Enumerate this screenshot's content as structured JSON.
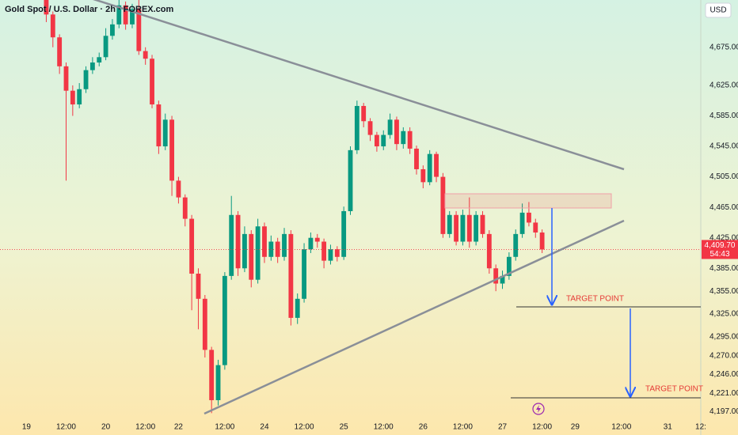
{
  "header": {
    "symbol_title": "Gold Spot / U.S. Dollar · 2h · FOREX.com",
    "currency": "USD"
  },
  "chart_data": {
    "type": "candlestick",
    "up_color": "#089981",
    "down_color": "#f23645",
    "x": [
      3,
      4,
      5,
      6,
      7,
      8,
      9,
      10,
      11,
      12,
      13,
      14,
      15,
      16,
      17,
      18,
      19,
      20,
      21,
      22,
      23,
      24,
      25,
      26,
      27,
      28,
      29,
      30,
      31,
      32,
      33,
      34,
      35,
      36,
      37,
      38,
      39,
      40,
      41,
      42,
      43,
      44,
      45,
      46,
      47,
      48,
      49,
      50,
      51,
      52,
      53,
      54,
      55,
      56,
      57,
      58,
      59,
      60,
      61,
      62,
      63,
      64,
      65,
      66,
      67,
      68,
      69,
      70,
      71,
      72,
      73,
      74,
      75,
      76,
      77,
      78
    ],
    "open": [
      4738,
      4718,
      4688,
      4650,
      4618,
      4600,
      4620,
      4645,
      4655,
      4662,
      4690,
      4705,
      4730,
      4705,
      4725,
      4670,
      4660,
      4600,
      4545,
      4580,
      4500,
      4478,
      4450,
      4378,
      4345,
      4278,
      4212,
      4258,
      4375,
      4455,
      4385,
      4430,
      4370,
      4440,
      4400,
      4420,
      4400,
      4430,
      4320,
      4345,
      4410,
      4425,
      4420,
      4395,
      4410,
      4400,
      4460,
      4540,
      4598,
      4578,
      4560,
      4545,
      4560,
      4580,
      4548,
      4565,
      4542,
      4515,
      4498,
      4535,
      4505,
      4430,
      4455,
      4420,
      4455,
      4420,
      4455,
      4430,
      4385,
      4365,
      4375,
      4400,
      4430,
      4458,
      4445,
      4432
    ],
    "high": [
      4745,
      4722,
      4692,
      4655,
      4625,
      4628,
      4650,
      4662,
      4668,
      4700,
      4712,
      4740,
      4735,
      4732,
      4738,
      4675,
      4665,
      4605,
      4588,
      4585,
      4505,
      4482,
      4455,
      4385,
      4350,
      4282,
      4265,
      4380,
      4480,
      4460,
      4440,
      4435,
      4450,
      4445,
      4428,
      4425,
      4438,
      4435,
      4352,
      4418,
      4432,
      4430,
      4424,
      4416,
      4414,
      4466,
      4545,
      4605,
      4602,
      4582,
      4564,
      4566,
      4588,
      4584,
      4570,
      4570,
      4546,
      4520,
      4540,
      4538,
      4510,
      4460,
      4460,
      4462,
      4478,
      4460,
      4460,
      4435,
      4390,
      4382,
      4406,
      4436,
      4470,
      4472,
      4450,
      4436
    ],
    "low": [
      4708,
      4675,
      4640,
      4500,
      4585,
      4595,
      4615,
      4640,
      4650,
      4658,
      4685,
      4700,
      4698,
      4700,
      4665,
      4652,
      4595,
      4535,
      4540,
      4480,
      4470,
      4440,
      4330,
      4305,
      4268,
      4195,
      4205,
      4252,
      4370,
      4375,
      4380,
      4360,
      4365,
      4392,
      4395,
      4392,
      4395,
      4310,
      4312,
      4340,
      4405,
      4412,
      4385,
      4390,
      4394,
      4396,
      4455,
      4535,
      4570,
      4552,
      4538,
      4540,
      4555,
      4540,
      4542,
      4535,
      4508,
      4490,
      4494,
      4498,
      4425,
      4425,
      4415,
      4415,
      4412,
      4415,
      4425,
      4378,
      4355,
      4358,
      4370,
      4395,
      4425,
      4440,
      4425,
      4405
    ],
    "close": [
      4718,
      4688,
      4650,
      4618,
      4600,
      4620,
      4645,
      4655,
      4662,
      4690,
      4705,
      4730,
      4705,
      4725,
      4670,
      4660,
      4600,
      4545,
      4580,
      4500,
      4478,
      4450,
      4378,
      4345,
      4278,
      4212,
      4258,
      4375,
      4455,
      4385,
      4430,
      4370,
      4440,
      4400,
      4420,
      4400,
      4430,
      4320,
      4345,
      4410,
      4425,
      4420,
      4395,
      4410,
      4400,
      4460,
      4540,
      4598,
      4578,
      4560,
      4545,
      4560,
      4580,
      4548,
      4565,
      4542,
      4515,
      4498,
      4535,
      4505,
      4430,
      4455,
      4420,
      4455,
      4420,
      4455,
      4430,
      4385,
      4365,
      4375,
      4400,
      4430,
      4458,
      4445,
      4432,
      4409.7
    ],
    "xlim": [
      -4,
      102
    ],
    "xticks": [
      {
        "value": 0,
        "label": "19"
      },
      {
        "value": 6,
        "label": "12:00"
      },
      {
        "value": 12,
        "label": "20"
      },
      {
        "value": 18,
        "label": "12:00"
      },
      {
        "value": 23,
        "label": "22"
      },
      {
        "value": 30,
        "label": "12:00"
      },
      {
        "value": 36,
        "label": "24"
      },
      {
        "value": 42,
        "label": "12:00"
      },
      {
        "value": 48,
        "label": "25"
      },
      {
        "value": 54,
        "label": "12:00"
      },
      {
        "value": 60,
        "label": "26"
      },
      {
        "value": 66,
        "label": "12:00"
      },
      {
        "value": 72,
        "label": "27"
      },
      {
        "value": 78,
        "label": "12:00"
      },
      {
        "value": 83,
        "label": "29"
      },
      {
        "value": 90,
        "label": "12:00"
      },
      {
        "value": 97,
        "label": "31"
      },
      {
        "value": 102,
        "label": "12:"
      }
    ],
    "ylim": [
      4185,
      4737
    ],
    "yticks": [
      {
        "value": 4675,
        "label": "4,675.00"
      },
      {
        "value": 4625,
        "label": "4,625.00"
      },
      {
        "value": 4585,
        "label": "4,585.00"
      },
      {
        "value": 4545,
        "label": "4,545.00"
      },
      {
        "value": 4505,
        "label": "4,505.00"
      },
      {
        "value": 4465,
        "label": "4,465.00"
      },
      {
        "value": 4425,
        "label": "4,425.00"
      },
      {
        "value": 4385,
        "label": "4,385.00"
      },
      {
        "value": 4355,
        "label": "4,355.00"
      },
      {
        "value": 4325,
        "label": "4,325.00"
      },
      {
        "value": 4295,
        "label": "4,295.00"
      },
      {
        "value": 4270,
        "label": "4,270.00"
      },
      {
        "value": 4246,
        "label": "4,246.00"
      },
      {
        "value": 4221,
        "label": "4,221.00"
      },
      {
        "value": 4197,
        "label": "4,197.00"
      }
    ],
    "last_price_label": "4,409.70",
    "countdown": "54:43",
    "annotations": [
      "TARGET POINT",
      "TARGET POINT"
    ]
  }
}
